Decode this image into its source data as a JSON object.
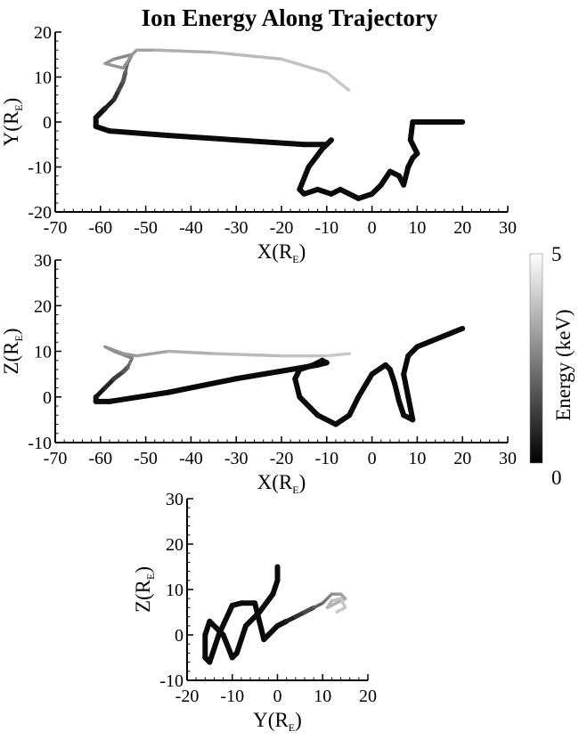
{
  "title": "Ion Energy Along Trajectory",
  "colorbar": {
    "label": "Energy (keV)",
    "min": "0",
    "max": "5",
    "colors": [
      "#000000",
      "#ffffff"
    ]
  },
  "chart_data": [
    {
      "type": "line",
      "name": "xy-panel",
      "xlabel": "X(R",
      "xsub": "E",
      "xclose": ")",
      "ylabel": "Y(R",
      "ysub": "E",
      "yclose": ")",
      "xlim": [
        -70,
        30
      ],
      "ylim": [
        -20,
        20
      ],
      "xticks": [
        -70,
        -60,
        -50,
        -40,
        -30,
        -20,
        -10,
        0,
        10,
        20,
        30
      ],
      "yticks": [
        -20,
        -10,
        0,
        10,
        20
      ],
      "series": [
        {
          "x": [
            20,
            9,
            8.5,
            10,
            9,
            8,
            7,
            6,
            4,
            2,
            0,
            -3,
            -5,
            -7,
            -9,
            -12,
            -15,
            -16,
            -14,
            -11,
            -9,
            -10,
            -15,
            -30,
            -45,
            -58,
            -61,
            -61,
            -59,
            -57,
            -56,
            -55,
            -54.5,
            -54,
            -53.5,
            -53
          ],
          "y": [
            0,
            0,
            -4,
            -7,
            -8,
            -10,
            -14,
            -12,
            -11,
            -14,
            -16,
            -17,
            -16,
            -15,
            -16,
            -15,
            -16,
            -15,
            -10,
            -6,
            -4,
            -5,
            -5,
            -4,
            -3,
            -2,
            -1,
            1,
            3,
            5,
            7,
            9,
            11,
            13,
            14,
            15
          ],
          "energy": [
            0,
            0,
            0,
            0,
            0,
            0,
            0,
            0,
            0,
            0,
            0,
            0,
            0,
            0,
            0,
            0,
            0,
            0,
            0,
            0,
            0,
            0,
            0,
            0,
            0,
            0,
            0,
            0,
            0.3,
            0.7,
            1.2,
            1.7,
            2.1,
            2.5,
            2.8,
            3
          ]
        },
        {
          "x": [
            -53,
            -57,
            -59,
            -55,
            -53,
            -52,
            -48,
            -35,
            -20,
            -10,
            -5
          ],
          "y": [
            15,
            14,
            13,
            12,
            15,
            16,
            16,
            15.5,
            14,
            11,
            7
          ],
          "energy": [
            3,
            3.3,
            3.5,
            3.5,
            3.4,
            3.6,
            4,
            4.3,
            4.5,
            4.7,
            4.8
          ]
        }
      ]
    },
    {
      "type": "line",
      "name": "xz-panel",
      "xlabel": "X(R",
      "xsub": "E",
      "xclose": ")",
      "ylabel": "Z(R",
      "ysub": "E",
      "yclose": ")",
      "xlim": [
        -70,
        30
      ],
      "ylim": [
        -10,
        30
      ],
      "xticks": [
        -70,
        -60,
        -50,
        -40,
        -30,
        -20,
        -10,
        0,
        10,
        20,
        30
      ],
      "yticks": [
        -10,
        0,
        10,
        20,
        30
      ],
      "series": [
        {
          "x": [
            20,
            10,
            8,
            7,
            8,
            9,
            7,
            6,
            5,
            4,
            3,
            0,
            -3,
            -5,
            -8,
            -12,
            -16,
            -17,
            -16,
            -13,
            -11,
            -10,
            -12,
            -30,
            -45,
            -58,
            -61,
            -61,
            -59,
            -57,
            -55,
            -54,
            -53.5,
            -53
          ],
          "y": [
            15,
            11,
            9,
            5,
            0,
            -5,
            -4,
            -1,
            3,
            6,
            7,
            5,
            0,
            -4,
            -6,
            -4,
            0,
            4,
            6,
            7,
            8,
            7.5,
            7,
            4,
            1,
            -1,
            -1,
            0,
            2,
            4,
            5.5,
            6.5,
            7.5,
            8.5
          ],
          "energy": [
            0,
            0,
            0,
            0,
            0,
            0,
            0,
            0,
            0,
            0,
            0,
            0,
            0,
            0,
            0,
            0,
            0,
            0,
            0,
            0,
            0,
            0,
            0,
            0,
            0,
            0,
            0,
            0,
            0.4,
            1,
            1.6,
            2.1,
            2.5,
            2.8
          ]
        },
        {
          "x": [
            -53,
            -57,
            -59,
            -55,
            -52,
            -45,
            -35,
            -20,
            -10,
            -5
          ],
          "y": [
            8.5,
            10,
            11,
            9.5,
            9,
            10,
            9.5,
            9,
            9,
            9.5
          ],
          "energy": [
            2.8,
            3.2,
            3.4,
            3.5,
            3.6,
            4,
            4.3,
            4.5,
            4.7,
            4.8
          ]
        }
      ]
    },
    {
      "type": "line",
      "name": "yz-panel",
      "xlabel": "Y(R",
      "xsub": "E",
      "xclose": ")",
      "ylabel": "Z(R",
      "ysub": "E",
      "yclose": ")",
      "xlim": [
        -20,
        20
      ],
      "ylim": [
        -10,
        30
      ],
      "xticks": [
        -20,
        -10,
        0,
        10,
        20
      ],
      "yticks": [
        -10,
        0,
        10,
        20,
        30
      ],
      "series": [
        {
          "x": [
            0,
            0,
            -1,
            -4,
            -7,
            -8,
            -9,
            -10,
            -12,
            -15,
            -16,
            -16,
            -15,
            -13,
            -10,
            -8,
            -5,
            -4,
            -3,
            -2,
            -1,
            0,
            2,
            4,
            6,
            8,
            10,
            11
          ],
          "y": [
            15,
            12,
            9,
            5,
            2,
            -1,
            -4,
            -5,
            0,
            3,
            0,
            -5,
            -6,
            0,
            6.5,
            7,
            7,
            3,
            -1,
            0,
            1,
            2,
            3,
            4,
            5,
            6,
            7,
            8
          ],
          "energy": [
            0,
            0,
            0,
            0,
            0,
            0,
            0,
            0,
            0,
            0,
            0,
            0,
            0,
            0,
            0,
            0,
            0,
            0,
            0,
            0,
            0,
            0,
            0.3,
            0.8,
            1.3,
            1.9,
            2.4,
            2.8
          ]
        },
        {
          "x": [
            11,
            12,
            14,
            15,
            13,
            11,
            12,
            14,
            15,
            13
          ],
          "y": [
            8,
            9,
            9,
            8,
            7,
            6,
            7.5,
            8,
            6,
            5
          ],
          "energy": [
            2.8,
            3.2,
            3.6,
            3.9,
            4.1,
            4.3,
            4.4,
            4.6,
            4.7,
            4.8
          ]
        }
      ]
    }
  ]
}
